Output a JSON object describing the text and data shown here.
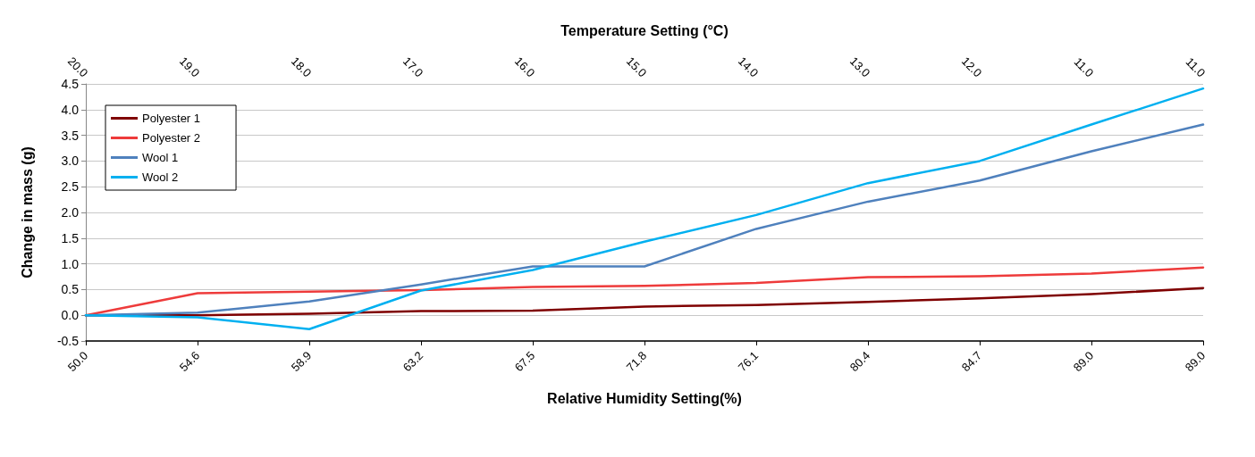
{
  "chart_data": {
    "type": "line",
    "xlabel": "Relative Humidity Setting(%)",
    "x2label": "Temperature Setting (°C)",
    "ylabel": "Change in mass (g)",
    "categories": [
      "50.0",
      "54.6",
      "58.9",
      "63.2",
      "67.5",
      "71.8",
      "76.1",
      "80.4",
      "84.7",
      "89.0",
      "89.0"
    ],
    "annotations": [
      "20.0",
      "19.0",
      "18.0",
      "17.0",
      "16.0",
      "15.0",
      "14.0",
      "13.0",
      "12.0",
      "11.0",
      "11.0"
    ],
    "ylim": [
      -0.5,
      4.5
    ],
    "yticks": [
      -0.5,
      {
        "value": 0,
        "label": "0.0"
      },
      0.5,
      {
        "value": 1,
        "label": "1.0"
      },
      1.5,
      {
        "value": 2,
        "label": "2.0"
      },
      2.5,
      {
        "value": 3,
        "label": "3.0"
      },
      3.5,
      {
        "value": 4,
        "label": "4.0"
      },
      4.5
    ],
    "grid": "y",
    "legend": "top left",
    "marker": "none",
    "line_style": "solid",
    "series": [
      {
        "name": "Polyester 1",
        "color": "#7f0000",
        "values": [
          0,
          0,
          0.03,
          0.08,
          0.09,
          0.17,
          0.2,
          0.26,
          0.33,
          0.41,
          0.53
        ]
      },
      {
        "name": "Polyester 2",
        "color": "#ee3b3b",
        "values": [
          0,
          0.43,
          0.46,
          0.49,
          0.55,
          0.57,
          0.63,
          0.74,
          0.76,
          0.81,
          0.93
        ]
      },
      {
        "name": "Wool 1",
        "color": "#4f81bd",
        "values": [
          0,
          0.05,
          0.27,
          0.6,
          0.95,
          0.95,
          1.68,
          2.21,
          2.62,
          3.19,
          3.71
        ]
      },
      {
        "name": "Wool 2",
        "color": "#00b0f0",
        "values": [
          0,
          -0.04,
          -0.27,
          0.48,
          0.88,
          1.43,
          1.95,
          2.57,
          3.0,
          3.71,
          4.41
        ]
      }
    ]
  }
}
